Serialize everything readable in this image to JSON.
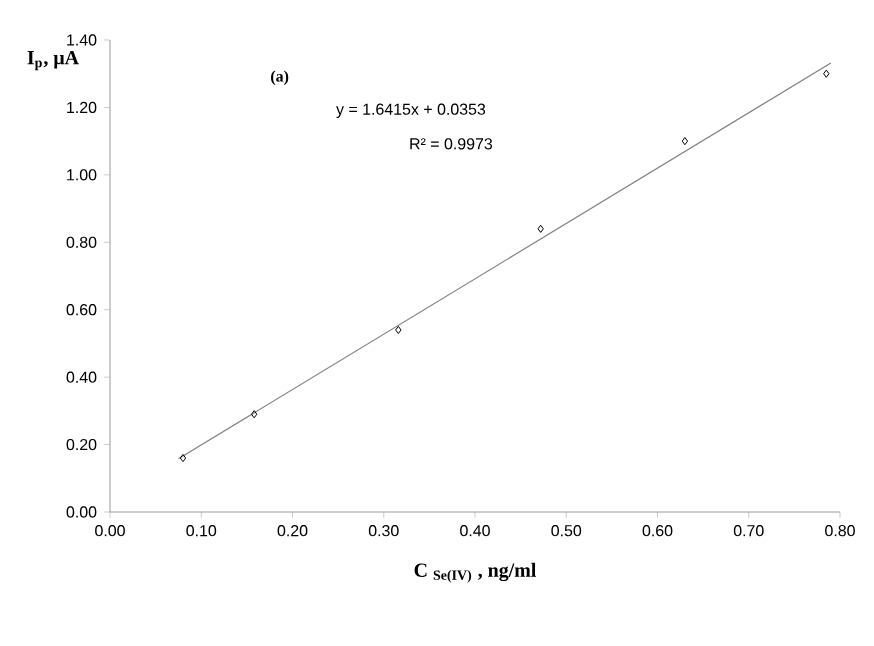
{
  "chart_data": {
    "type": "scatter",
    "xlabel": "C $_{Se(IV)}$ , ng/ml",
    "ylabel": "I$_{p}$, μA",
    "annotations": [
      "(a)",
      "y = 1.6415x + 0.0353",
      "R² = 0.9973"
    ],
    "series": [
      {
        "color": "#000000",
        "marker": "diamond",
        "x": [
          0.08,
          0.158,
          0.316,
          0.472,
          0.63,
          0.785
        ],
        "values": [
          0.16,
          0.29,
          0.54,
          0.84,
          1.1,
          1.3
        ]
      },
      {
        "type": "line",
        "color": "#808080",
        "marker": "none",
        "x": [
          0.075,
          0.79
        ],
        "values": [
          0.158,
          1.332
        ]
      }
    ],
    "xlim": [
      0,
      0.8
    ],
    "ylim": [
      0,
      1.4
    ],
    "xticks": [
      {
        "value": 0,
        "label": "0.00"
      },
      {
        "value": 0.1,
        "label": "0.10"
      },
      {
        "value": 0.2,
        "label": "0.20"
      },
      {
        "value": 0.3,
        "label": "0.30"
      },
      {
        "value": 0.4,
        "label": "0.40"
      },
      {
        "value": 0.5,
        "label": "0.50"
      },
      {
        "value": 0.6,
        "label": "0.60"
      },
      {
        "value": 0.7,
        "label": "0.70"
      },
      {
        "value": 0.8,
        "label": "0.80"
      }
    ],
    "yticks": [
      {
        "value": 0,
        "label": "0.00"
      },
      {
        "value": 0.2,
        "label": "0.20"
      },
      {
        "value": 0.4,
        "label": "0.40"
      },
      {
        "value": 0.6,
        "label": "0.60"
      },
      {
        "value": 0.8,
        "label": "0.80"
      },
      {
        "value": 1.0,
        "label": "1.00"
      },
      {
        "value": 1.2,
        "label": "1.20"
      },
      {
        "value": 1.4,
        "label": "1.40"
      }
    ]
  }
}
